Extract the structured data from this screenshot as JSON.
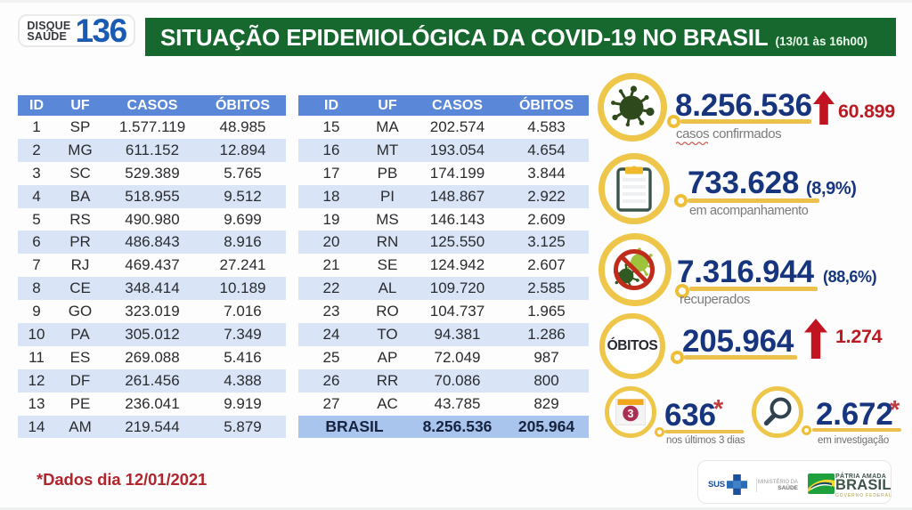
{
  "header": {
    "badge": {
      "line1": "DISQUE",
      "line2": "SAÚDE",
      "number": "136"
    },
    "banner": {
      "title": "SITUAÇÃO EPIDEMIOLÓGICA DA COVID-19 NO BRASIL",
      "datetime": "(13/01 às 16h00)"
    }
  },
  "tables": {
    "columns": [
      "ID",
      "UF",
      "CASOS",
      "ÓBITOS"
    ],
    "left_rows": [
      [
        "1",
        "SP",
        "1.577.119",
        "48.985"
      ],
      [
        "2",
        "MG",
        "611.152",
        "12.894"
      ],
      [
        "3",
        "SC",
        "529.389",
        "5.765"
      ],
      [
        "4",
        "BA",
        "518.955",
        "9.512"
      ],
      [
        "5",
        "RS",
        "490.980",
        "9.699"
      ],
      [
        "6",
        "PR",
        "486.843",
        "8.916"
      ],
      [
        "7",
        "RJ",
        "469.437",
        "27.241"
      ],
      [
        "8",
        "CE",
        "348.414",
        "10.189"
      ],
      [
        "9",
        "GO",
        "323.019",
        "7.016"
      ],
      [
        "10",
        "PA",
        "305.012",
        "7.349"
      ],
      [
        "11",
        "ES",
        "269.088",
        "5.416"
      ],
      [
        "12",
        "DF",
        "261.456",
        "4.388"
      ],
      [
        "13",
        "PE",
        "236.041",
        "9.919"
      ],
      [
        "14",
        "AM",
        "219.544",
        "5.879"
      ]
    ],
    "right_rows": [
      [
        "15",
        "MA",
        "202.574",
        "4.583"
      ],
      [
        "16",
        "MT",
        "193.054",
        "4.654"
      ],
      [
        "17",
        "PB",
        "174.199",
        "3.844"
      ],
      [
        "18",
        "PI",
        "148.867",
        "2.922"
      ],
      [
        "19",
        "MS",
        "146.143",
        "2.609"
      ],
      [
        "20",
        "RN",
        "125.550",
        "3.125"
      ],
      [
        "21",
        "SE",
        "124.942",
        "2.607"
      ],
      [
        "22",
        "AL",
        "109.720",
        "2.585"
      ],
      [
        "23",
        "RO",
        "104.737",
        "1.965"
      ],
      [
        "24",
        "TO",
        "94.381",
        "1.286"
      ],
      [
        "25",
        "AP",
        "72.049",
        "987"
      ],
      [
        "26",
        "RR",
        "70.086",
        "800"
      ],
      [
        "27",
        "AC",
        "43.785",
        "829"
      ]
    ],
    "total_row": {
      "label": "BRASIL",
      "casos": "8.256.536",
      "obitos": "205.964"
    }
  },
  "stats": [
    {
      "id": "confirmed",
      "icon": "virus-icon",
      "value": "8.256.536",
      "delta": "60.899",
      "delta_direction": "up",
      "label_word1": "casos",
      "label_word2": "confirmados"
    },
    {
      "id": "monitoring",
      "icon": "clipboard-icon",
      "value": "733.628",
      "percent": "(8,9%)",
      "label": "em acompanhamento"
    },
    {
      "id": "recovered",
      "icon": "no-virus-icon",
      "value": "7.316.944",
      "percent": "(88,6%)",
      "label": "recuperados"
    },
    {
      "id": "deaths",
      "icon": "obitos-circle",
      "circle_label": "ÓBITOS",
      "value": "205.964",
      "delta": "1.274",
      "delta_direction": "up"
    },
    {
      "id": "last-3-days",
      "icon": "calendar-icon",
      "value": "636",
      "asterisk": "*",
      "label": "nos últimos 3 dias",
      "calendar_number": "3"
    },
    {
      "id": "investigation",
      "icon": "magnifier-icon",
      "value": "2.672",
      "asterisk": "*",
      "label": "em investigação"
    }
  ],
  "footnote": "*Dados dia 12/01/2021",
  "footer_logos": {
    "sus": "SUS",
    "ministry_line1": "MINISTÉRIO DA",
    "ministry_line2": "SAÚDE",
    "gov_line1": "PÁTRIA AMADA",
    "gov_line2": "BRASIL",
    "gov_line3": "GOVERNO FEDERAL"
  },
  "colors": {
    "banner_green": "#17682e",
    "table_header_blue": "#5a87d7",
    "table_stripe_blue": "#d9e5f7",
    "table_total_blue": "#a9c5ee",
    "stat_navy": "#16357e",
    "alert_red": "#bb1a22",
    "accent_yellow": "#eebe37",
    "label_gray": "#7b7b7b"
  }
}
